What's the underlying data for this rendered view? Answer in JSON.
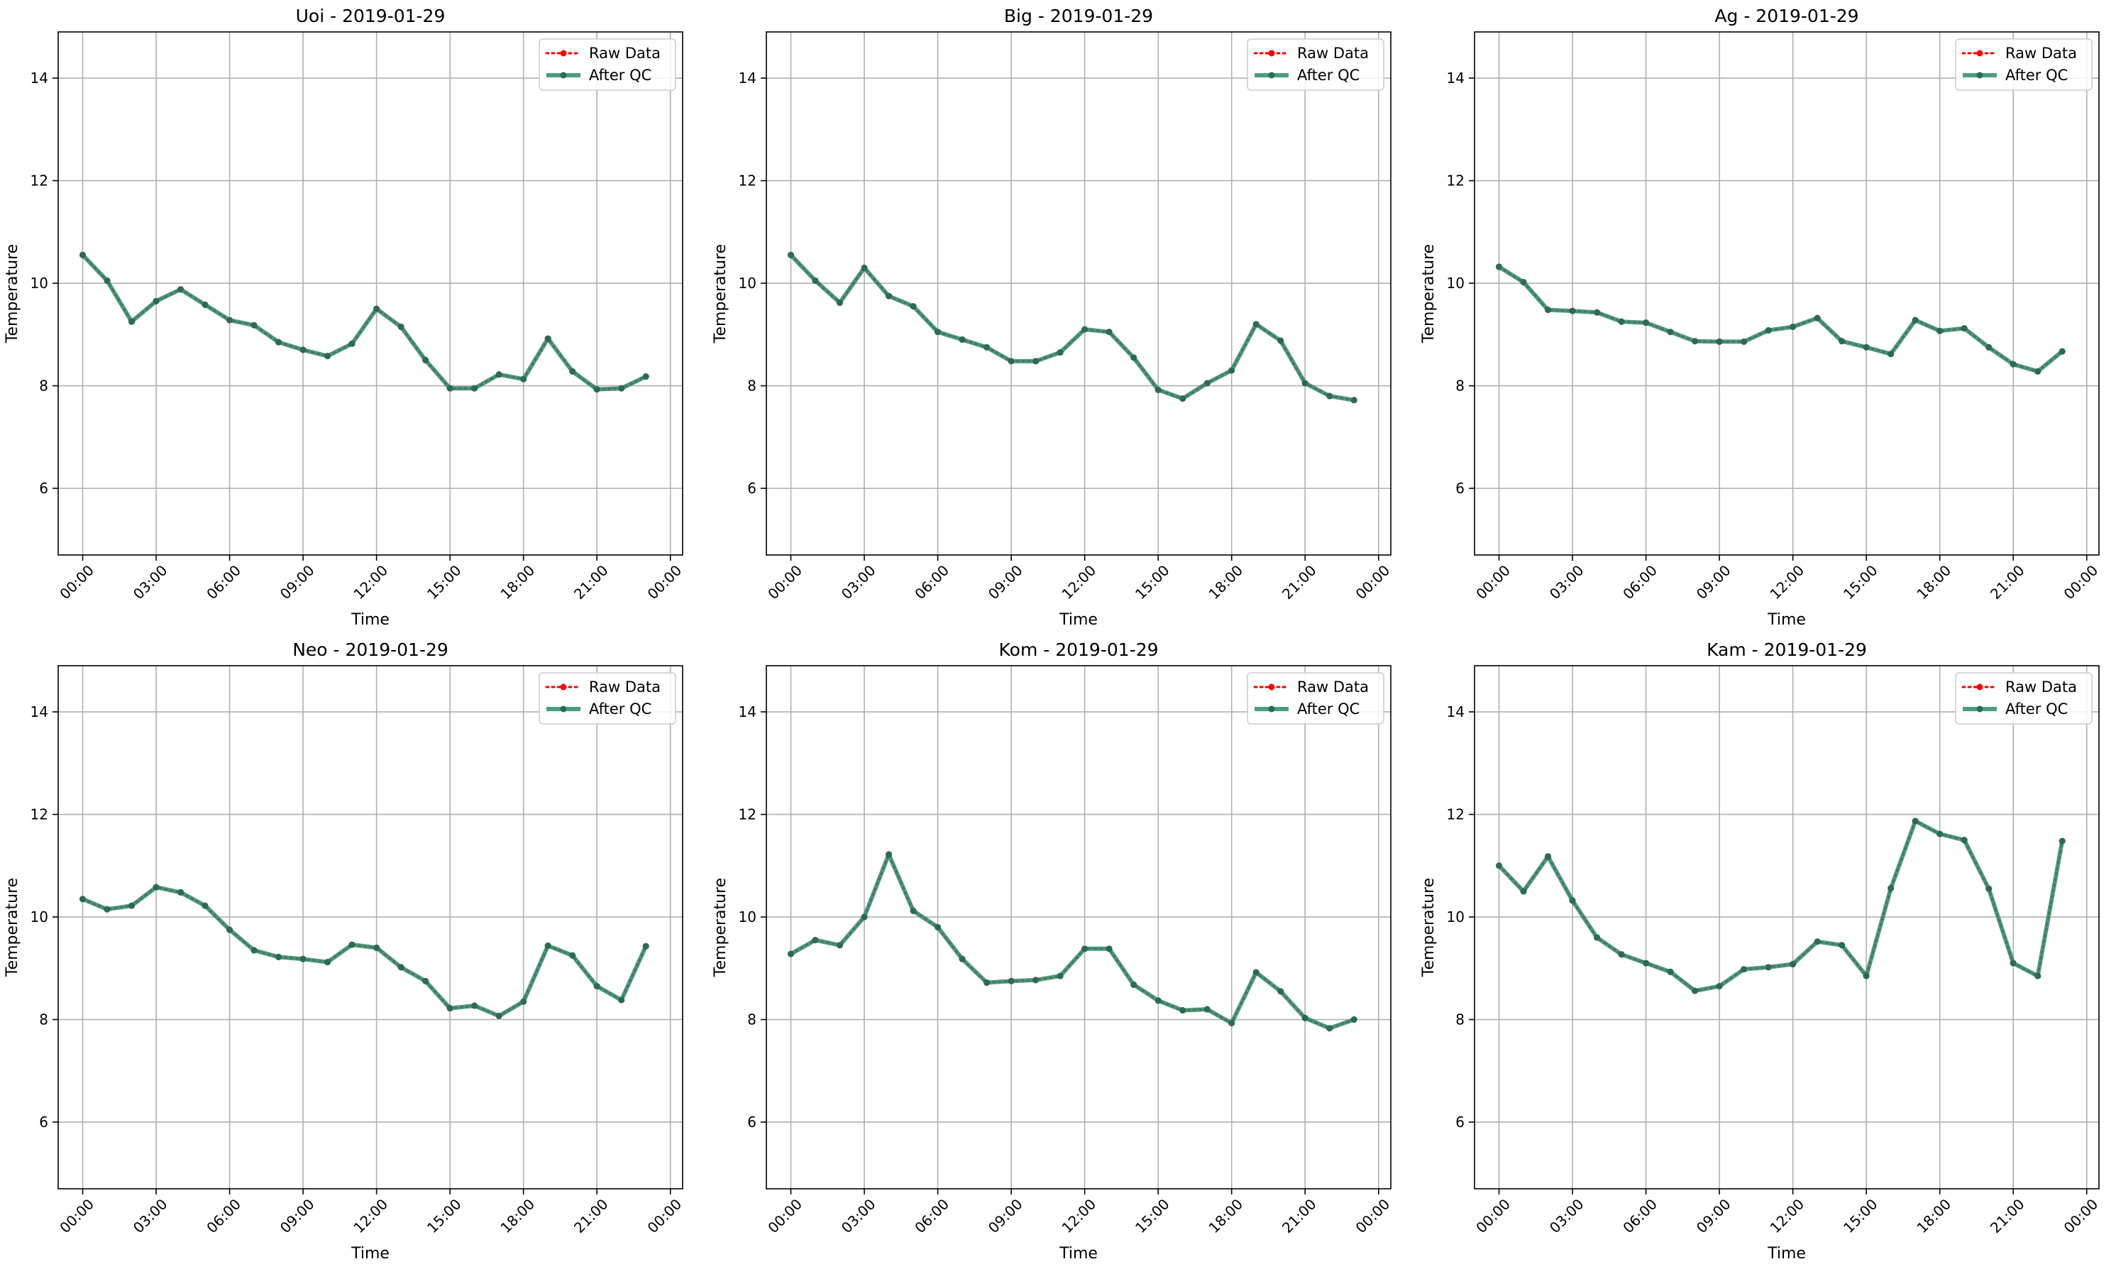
{
  "chart_data": [
    {
      "type": "line",
      "title": "Uoi - 2019-01-29",
      "xlabel": "Time",
      "ylabel": "Temperature",
      "x_ticks": [
        "00:00",
        "03:00",
        "06:00",
        "09:00",
        "12:00",
        "15:00",
        "18:00",
        "21:00",
        "00:00"
      ],
      "y_ticks": [
        6,
        8,
        10,
        12,
        14
      ],
      "ylim": [
        4.7,
        14.9
      ],
      "grid": true,
      "legend_position": "top-right",
      "x": [
        "00:00",
        "01:00",
        "02:00",
        "03:00",
        "04:00",
        "05:00",
        "06:00",
        "07:00",
        "08:00",
        "09:00",
        "10:00",
        "11:00",
        "12:00",
        "13:00",
        "14:00",
        "15:00",
        "16:00",
        "17:00",
        "18:00",
        "19:00",
        "20:00",
        "21:00",
        "22:00",
        "23:00"
      ],
      "series": [
        {
          "name": "Raw Data",
          "style": "dotted",
          "color": "#ff0000",
          "values": [
            10.55,
            10.05,
            9.25,
            9.65,
            9.88,
            9.58,
            9.28,
            9.18,
            8.85,
            8.7,
            8.58,
            8.82,
            9.5,
            9.15,
            8.5,
            7.95,
            7.95,
            8.22,
            8.13,
            8.92,
            8.28,
            7.93,
            7.95,
            8.18
          ]
        },
        {
          "name": "After QC",
          "style": "solid",
          "color": "#2e8b6b",
          "values": [
            10.55,
            10.05,
            9.25,
            9.65,
            9.88,
            9.58,
            9.28,
            9.18,
            8.85,
            8.7,
            8.58,
            8.82,
            9.5,
            9.15,
            8.5,
            7.95,
            7.95,
            8.22,
            8.13,
            8.92,
            8.28,
            7.93,
            7.95,
            8.18
          ]
        }
      ]
    },
    {
      "type": "line",
      "title": "Big - 2019-01-29",
      "xlabel": "Time",
      "ylabel": "Temperature",
      "x_ticks": [
        "00:00",
        "03:00",
        "06:00",
        "09:00",
        "12:00",
        "15:00",
        "18:00",
        "21:00",
        "00:00"
      ],
      "y_ticks": [
        6,
        8,
        10,
        12,
        14
      ],
      "ylim": [
        4.7,
        14.9
      ],
      "grid": true,
      "legend_position": "top-right",
      "x": [
        "00:00",
        "01:00",
        "02:00",
        "03:00",
        "04:00",
        "05:00",
        "06:00",
        "07:00",
        "08:00",
        "09:00",
        "10:00",
        "11:00",
        "12:00",
        "13:00",
        "14:00",
        "15:00",
        "16:00",
        "17:00",
        "18:00",
        "19:00",
        "20:00",
        "21:00",
        "22:00",
        "23:00"
      ],
      "series": [
        {
          "name": "Raw Data",
          "style": "dotted",
          "color": "#ff0000",
          "values": [
            10.55,
            10.05,
            9.62,
            10.3,
            9.75,
            9.55,
            9.05,
            8.9,
            8.75,
            8.48,
            8.48,
            8.65,
            9.1,
            9.05,
            8.55,
            7.92,
            7.75,
            8.05,
            8.3,
            9.2,
            8.88,
            8.05,
            7.8,
            7.72
          ]
        },
        {
          "name": "After QC",
          "style": "solid",
          "color": "#2e8b6b",
          "values": [
            10.55,
            10.05,
            9.62,
            10.3,
            9.75,
            9.55,
            9.05,
            8.9,
            8.75,
            8.48,
            8.48,
            8.65,
            9.1,
            9.05,
            8.55,
            7.92,
            7.75,
            8.05,
            8.3,
            9.2,
            8.88,
            8.05,
            7.8,
            7.72
          ]
        }
      ]
    },
    {
      "type": "line",
      "title": "Ag - 2019-01-29",
      "xlabel": "Time",
      "ylabel": "Temperature",
      "x_ticks": [
        "00:00",
        "03:00",
        "06:00",
        "09:00",
        "12:00",
        "15:00",
        "18:00",
        "21:00",
        "00:00"
      ],
      "y_ticks": [
        6,
        8,
        10,
        12,
        14
      ],
      "ylim": [
        4.7,
        14.9
      ],
      "grid": true,
      "legend_position": "top-right",
      "x": [
        "00:00",
        "01:00",
        "02:00",
        "03:00",
        "04:00",
        "05:00",
        "06:00",
        "07:00",
        "08:00",
        "09:00",
        "10:00",
        "11:00",
        "12:00",
        "13:00",
        "14:00",
        "15:00",
        "16:00",
        "17:00",
        "18:00",
        "19:00",
        "20:00",
        "21:00",
        "22:00",
        "23:00"
      ],
      "series": [
        {
          "name": "Raw Data",
          "style": "dotted",
          "color": "#ff0000",
          "values": [
            10.32,
            10.02,
            9.48,
            9.46,
            9.43,
            9.25,
            9.23,
            9.05,
            8.87,
            8.86,
            8.86,
            9.08,
            9.15,
            9.32,
            8.87,
            8.75,
            8.62,
            9.28,
            9.07,
            9.12,
            8.75,
            8.42,
            8.28,
            8.67
          ]
        },
        {
          "name": "After QC",
          "style": "solid",
          "color": "#2e8b6b",
          "values": [
            10.32,
            10.02,
            9.48,
            9.46,
            9.43,
            9.25,
            9.23,
            9.05,
            8.87,
            8.86,
            8.86,
            9.08,
            9.15,
            9.32,
            8.87,
            8.75,
            8.62,
            9.28,
            9.07,
            9.12,
            8.75,
            8.42,
            8.28,
            8.67
          ]
        }
      ]
    },
    {
      "type": "line",
      "title": "Neo - 2019-01-29",
      "xlabel": "Time",
      "ylabel": "Temperature",
      "x_ticks": [
        "00:00",
        "03:00",
        "06:00",
        "09:00",
        "12:00",
        "15:00",
        "18:00",
        "21:00",
        "00:00"
      ],
      "y_ticks": [
        6,
        8,
        10,
        12,
        14
      ],
      "ylim": [
        4.7,
        14.9
      ],
      "grid": true,
      "legend_position": "top-right",
      "x": [
        "00:00",
        "01:00",
        "02:00",
        "03:00",
        "04:00",
        "05:00",
        "06:00",
        "07:00",
        "08:00",
        "09:00",
        "10:00",
        "11:00",
        "12:00",
        "13:00",
        "14:00",
        "15:00",
        "16:00",
        "17:00",
        "18:00",
        "19:00",
        "20:00",
        "21:00",
        "22:00",
        "23:00"
      ],
      "series": [
        {
          "name": "Raw Data",
          "style": "dotted",
          "color": "#ff0000",
          "values": [
            10.35,
            10.15,
            10.22,
            10.58,
            10.48,
            10.22,
            9.75,
            9.35,
            9.22,
            9.18,
            9.12,
            9.46,
            9.4,
            9.02,
            8.75,
            8.22,
            8.27,
            8.07,
            8.35,
            9.44,
            9.25,
            8.65,
            8.38,
            9.43
          ]
        },
        {
          "name": "After QC",
          "style": "solid",
          "color": "#2e8b6b",
          "values": [
            10.35,
            10.15,
            10.22,
            10.58,
            10.48,
            10.22,
            9.75,
            9.35,
            9.22,
            9.18,
            9.12,
            9.46,
            9.4,
            9.02,
            8.75,
            8.22,
            8.27,
            8.07,
            8.35,
            9.44,
            9.25,
            8.65,
            8.38,
            9.43
          ]
        }
      ]
    },
    {
      "type": "line",
      "title": "Kom - 2019-01-29",
      "xlabel": "Time",
      "ylabel": "Temperature",
      "x_ticks": [
        "00:00",
        "03:00",
        "06:00",
        "09:00",
        "12:00",
        "15:00",
        "18:00",
        "21:00",
        "00:00"
      ],
      "y_ticks": [
        6,
        8,
        10,
        12,
        14
      ],
      "ylim": [
        4.7,
        14.9
      ],
      "grid": true,
      "legend_position": "top-right",
      "x": [
        "00:00",
        "01:00",
        "02:00",
        "03:00",
        "04:00",
        "05:00",
        "06:00",
        "07:00",
        "08:00",
        "09:00",
        "10:00",
        "11:00",
        "12:00",
        "13:00",
        "14:00",
        "15:00",
        "16:00",
        "17:00",
        "18:00",
        "19:00",
        "20:00",
        "21:00",
        "22:00",
        "23:00"
      ],
      "series": [
        {
          "name": "Raw Data",
          "style": "dotted",
          "color": "#ff0000",
          "values": [
            9.28,
            9.55,
            9.45,
            10.0,
            11.22,
            10.12,
            9.8,
            9.18,
            8.72,
            8.75,
            8.77,
            8.85,
            9.38,
            9.38,
            8.68,
            8.37,
            8.18,
            8.2,
            7.93,
            8.92,
            8.55,
            8.03,
            7.83,
            8.0
          ]
        },
        {
          "name": "After QC",
          "style": "solid",
          "color": "#2e8b6b",
          "values": [
            9.28,
            9.55,
            9.45,
            10.0,
            11.22,
            10.12,
            9.8,
            9.18,
            8.72,
            8.75,
            8.77,
            8.85,
            9.38,
            9.38,
            8.68,
            8.37,
            8.18,
            8.2,
            7.93,
            8.92,
            8.55,
            8.03,
            7.83,
            8.0
          ]
        }
      ]
    },
    {
      "type": "line",
      "title": "Kam - 2019-01-29",
      "xlabel": "Time",
      "ylabel": "Temperature",
      "x_ticks": [
        "00:00",
        "03:00",
        "06:00",
        "09:00",
        "12:00",
        "15:00",
        "18:00",
        "21:00",
        "00:00"
      ],
      "y_ticks": [
        6,
        8,
        10,
        12,
        14
      ],
      "ylim": [
        4.7,
        14.9
      ],
      "grid": true,
      "legend_position": "top-right",
      "x": [
        "00:00",
        "01:00",
        "02:00",
        "03:00",
        "04:00",
        "05:00",
        "06:00",
        "07:00",
        "08:00",
        "09:00",
        "10:00",
        "11:00",
        "12:00",
        "13:00",
        "14:00",
        "15:00",
        "16:00",
        "17:00",
        "18:00",
        "19:00",
        "20:00",
        "21:00",
        "22:00",
        "23:00"
      ],
      "series": [
        {
          "name": "Raw Data",
          "style": "dotted",
          "color": "#ff0000",
          "values": [
            11.0,
            10.5,
            11.18,
            10.32,
            9.6,
            9.27,
            9.1,
            8.93,
            8.56,
            8.65,
            8.98,
            9.02,
            9.08,
            9.52,
            9.45,
            8.85,
            10.56,
            11.87,
            11.62,
            11.5,
            10.55,
            9.1,
            8.85,
            11.48
          ]
        },
        {
          "name": "After QC",
          "style": "solid",
          "color": "#2e8b6b",
          "values": [
            11.0,
            10.5,
            11.18,
            10.32,
            9.6,
            9.27,
            9.1,
            8.93,
            8.56,
            8.65,
            8.98,
            9.02,
            9.08,
            9.52,
            9.45,
            8.85,
            10.56,
            11.87,
            11.62,
            11.5,
            10.55,
            9.1,
            8.85,
            11.48
          ]
        }
      ]
    }
  ]
}
